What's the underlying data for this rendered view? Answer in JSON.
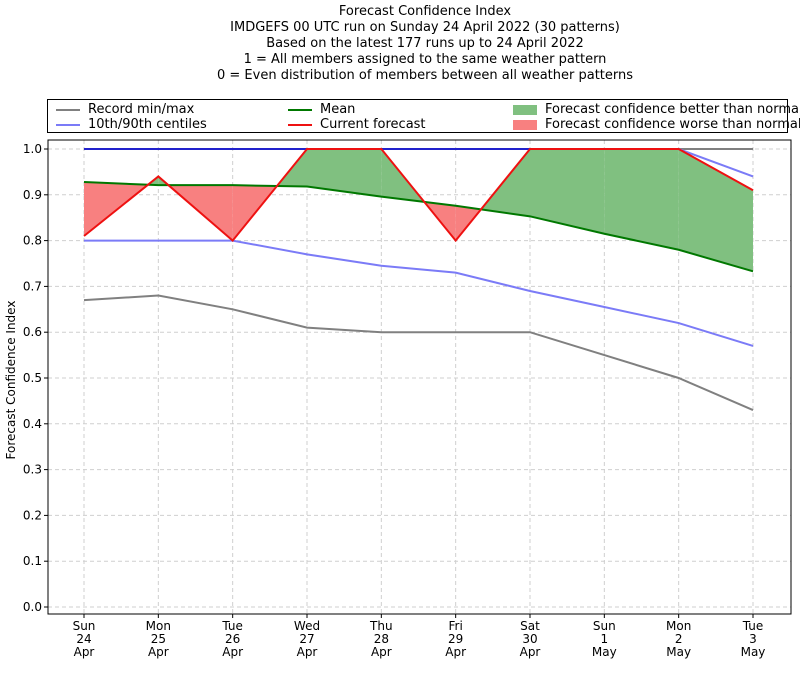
{
  "title_lines": [
    "Forecast Confidence Index",
    "IMDGEFS 00 UTC run on Sunday 24 April 2022 (30 patterns)",
    "Based on the latest 177 runs up to 24 April 2022",
    "1 = All members assigned to the same weather pattern",
    "0 = Even distribution of members between all weather patterns"
  ],
  "legend": {
    "record": "Record min/max",
    "centiles": "10th/90th centiles",
    "mean": "Mean",
    "current": "Current forecast",
    "better": "Forecast confidence better than normal",
    "worse": "Forecast confidence worse than normal"
  },
  "colors": {
    "record": "#808080",
    "centiles": "#7b7bf7",
    "max_blue": "#2222cc",
    "mean": "#007800",
    "current": "#ee1111",
    "better": "#80c080",
    "worse": "#f88080"
  },
  "chart_data": {
    "type": "line",
    "ylabel": "Forecast Confidence Index",
    "ylim": [
      0.0,
      1.0
    ],
    "yticks": [
      "0.0",
      "0.1",
      "0.2",
      "0.3",
      "0.4",
      "0.5",
      "0.6",
      "0.7",
      "0.8",
      "0.9",
      "1.0"
    ],
    "grid": true,
    "legend_position": "top",
    "categories": [
      [
        "Sun",
        "24",
        "Apr"
      ],
      [
        "Mon",
        "25",
        "Apr"
      ],
      [
        "Tue",
        "26",
        "Apr"
      ],
      [
        "Wed",
        "27",
        "Apr"
      ],
      [
        "Thu",
        "28",
        "Apr"
      ],
      [
        "Fri",
        "29",
        "Apr"
      ],
      [
        "Sat",
        "30",
        "Apr"
      ],
      [
        "Sun",
        "1",
        "May"
      ],
      [
        "Mon",
        "2",
        "May"
      ],
      [
        "Tue",
        "3",
        "May"
      ]
    ],
    "series": [
      {
        "name": "Record min/max",
        "key": "record_min",
        "values": [
          0.67,
          0.68,
          0.65,
          0.61,
          0.6,
          0.6,
          0.6,
          0.55,
          0.5,
          0.43
        ]
      },
      {
        "name": "Record min/max",
        "key": "record_max",
        "values": [
          1.0,
          1.0,
          1.0,
          1.0,
          1.0,
          1.0,
          1.0,
          1.0,
          1.0,
          1.0
        ]
      },
      {
        "name": "10th/90th centiles",
        "key": "p10",
        "values": [
          0.8,
          0.8,
          0.8,
          0.77,
          0.745,
          0.73,
          0.69,
          0.655,
          0.62,
          0.57
        ]
      },
      {
        "name": "10th/90th centiles",
        "key": "p90",
        "values": [
          1.0,
          1.0,
          1.0,
          1.0,
          1.0,
          1.0,
          1.0,
          1.0,
          1.0,
          0.94
        ]
      },
      {
        "name": "Mean",
        "key": "mean",
        "values": [
          0.928,
          0.921,
          0.921,
          0.918,
          0.896,
          0.876,
          0.853,
          0.815,
          0.78,
          0.733
        ]
      },
      {
        "name": "Current forecast",
        "key": "current",
        "values": [
          0.81,
          0.94,
          0.8,
          1.0,
          1.0,
          0.8,
          1.0,
          1.0,
          1.0,
          0.91
        ]
      }
    ]
  }
}
